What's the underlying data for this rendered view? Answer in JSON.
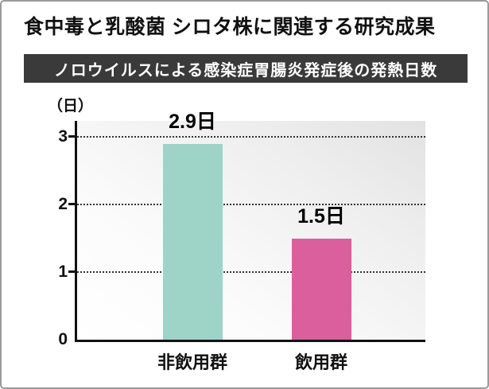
{
  "title": "食中毒と乳酸菌 シロタ株に関連する研究成果",
  "banner": "ノロウイルスによる感染症胃腸炎発症後の発熱日数",
  "chart_data": {
    "type": "bar",
    "title": "ノロウイルスによる感染症胃腸炎発症後の発熱日数",
    "unit_label": "（日）",
    "categories": [
      "非飲用群",
      "飲用群"
    ],
    "values": [
      2.9,
      1.5
    ],
    "value_labels": [
      "2.9日",
      "1.5日"
    ],
    "bar_colors": [
      "#9ed3c8",
      "#da5f9c"
    ],
    "ylabel": "日",
    "ylim": [
      0,
      3
    ],
    "yticks": [
      0,
      1,
      2,
      3
    ],
    "grid": "horizontal dotted lines at 1, 2, 3",
    "legend": "none",
    "colors": {
      "banner_bg": "#3a3a3a",
      "banner_text": "#ffffff",
      "axis": "#111111",
      "teal_bar": "#9ed3c8",
      "pink_bar": "#da5f9c"
    }
  }
}
